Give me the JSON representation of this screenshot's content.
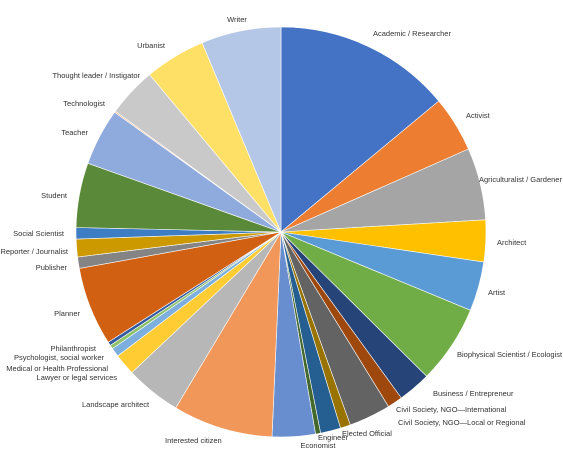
{
  "chart_data": {
    "type": "pie",
    "categories": [
      "Academic / Researcher",
      "Activist",
      "Agriculturalist / Gardener",
      "Architect",
      "Artist",
      "Biophysical Scientist / Ecologist",
      "Business / Entrepreneur",
      "Civil Society, NGO—International",
      "Civil Society, NGO—Local or Regional",
      "Economist",
      "Elected Official",
      "Engineer",
      null,
      "Interested citizen",
      "Landscape architect",
      "Lawyer or legal services",
      "Medical or Health Professional",
      "Psychologist, social worker",
      "Philanthropist",
      "Planner",
      "Publisher",
      "Reporter / Journalist",
      "Social Scientist",
      "Student",
      "Teacher",
      "Technologist",
      "Thought leader / Instigator",
      "Urbanist",
      "Writer"
    ],
    "values": [
      14.0,
      4.4,
      5.7,
      3.3,
      3.9,
      6.2,
      2.6,
      1.2,
      3.3,
      0.8,
      1.6,
      0.4,
      3.4,
      7.9,
      4.4,
      1.7,
      0.7,
      0.3,
      0.3,
      6.2,
      0.9,
      1.4,
      0.9,
      5.1,
      4.5,
      0.1,
      3.9,
      4.8,
      6.3
    ],
    "colors": [
      "#4472c4",
      "#ed7d31",
      "#a5a5a5",
      "#ffc000",
      "#5b9bd5",
      "#70ad47",
      "#264478",
      "#9e480e",
      "#636363",
      "#997300",
      "#255e91",
      "#43682b",
      "#698ed0",
      "#f1975a",
      "#b7b7b7",
      "#ffcd33",
      "#7cafdd",
      "#8cc168",
      "#335aa1",
      "#d26012",
      "#848484",
      "#cc9a00",
      "#3c7dc4",
      "#5a8a39",
      "#8faadc",
      "#f4b183",
      "#c9c9c9",
      "#ffe066",
      "#b4c7e7"
    ]
  }
}
